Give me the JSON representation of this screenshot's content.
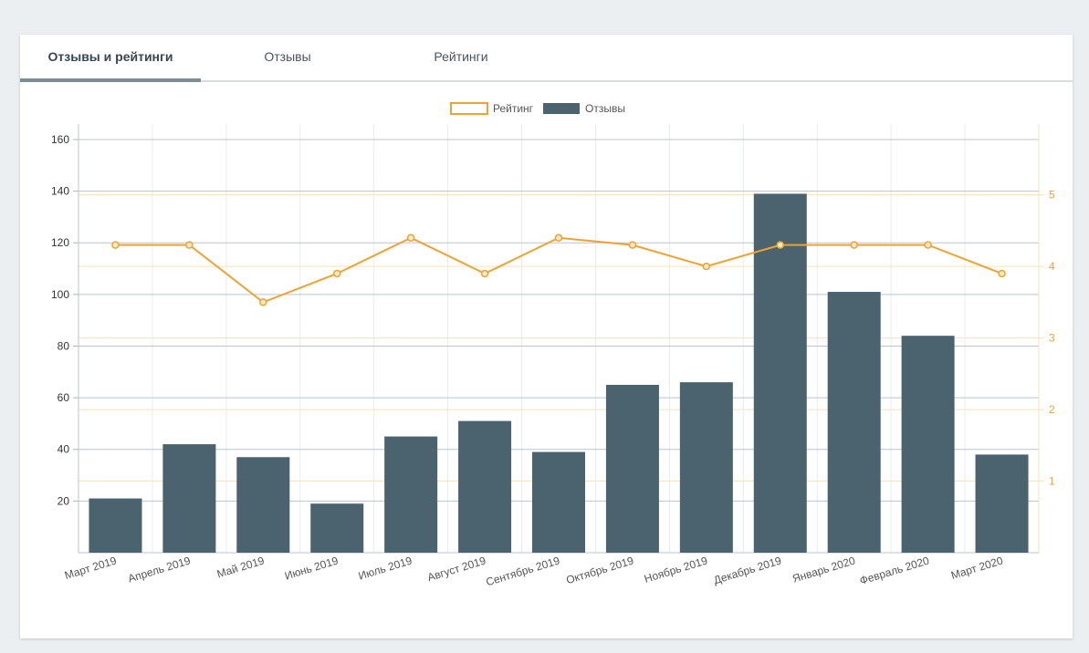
{
  "tabs": [
    {
      "label": "Отзывы и рейтинги",
      "active": true
    },
    {
      "label": "Отзывы",
      "active": false
    },
    {
      "label": "Рейтинги",
      "active": false
    }
  ],
  "colors": {
    "bars": "#4b626f",
    "line": "#f0a22e",
    "grid_left": "#b9c5d0",
    "grid_right": "#fbe3b8",
    "axis_text": "#555555"
  },
  "chart_data": {
    "type": "bar",
    "categories": [
      "Март 2019",
      "Апрель 2019",
      "Май 2019",
      "Июнь 2019",
      "Июль 2019",
      "Август 2019",
      "Сентябрь 2019",
      "Октябрь 2019",
      "Ноябрь 2019",
      "Декабрь 2019",
      "Январь 2020",
      "Февраль 2020",
      "Март 2020"
    ],
    "series": [
      {
        "name": "Отзывы",
        "type": "bar",
        "axis": "left",
        "values": [
          21,
          42,
          37,
          19,
          45,
          51,
          39,
          65,
          66,
          139,
          101,
          84,
          38
        ]
      },
      {
        "name": "Рейтинг",
        "type": "line",
        "axis": "right",
        "values": [
          4.3,
          4.3,
          3.5,
          3.9,
          4.4,
          3.9,
          4.4,
          4.3,
          4.0,
          4.3,
          4.3,
          4.3,
          3.9
        ]
      }
    ],
    "y_left": {
      "ticks": [
        20,
        40,
        60,
        80,
        100,
        120,
        140,
        160
      ],
      "ylim": [
        0,
        166
      ]
    },
    "y_right": {
      "ticks": [
        1,
        2,
        3,
        4,
        5
      ],
      "ylim": [
        0,
        5.99
      ]
    },
    "legend": {
      "position": "top-center",
      "entries": [
        "Рейтинг",
        "Отзывы"
      ]
    },
    "grid": true
  }
}
